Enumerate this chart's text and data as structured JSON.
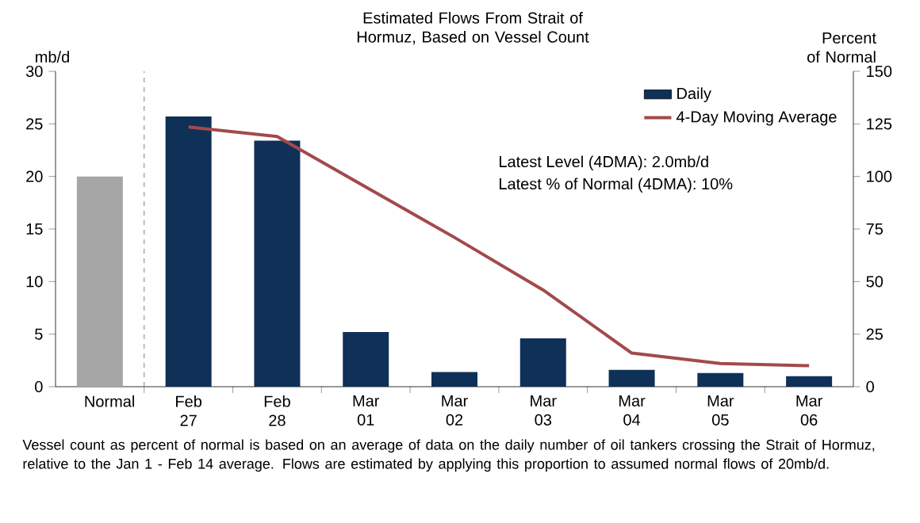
{
  "chart_data": {
    "type": "bar",
    "title": "Estimated Flows From Strait of Hormuz, Based on Vessel Count",
    "ylabel": "mb/d",
    "y2label": "Percent of Normal",
    "categories": [
      "Normal",
      "Feb 27",
      "Feb 28",
      "Mar 01",
      "Mar 02",
      "Mar 03",
      "Mar 04",
      "Mar 05",
      "Mar 06"
    ],
    "series": [
      {
        "name": "Daily",
        "color": "#0f3057",
        "colors": [
          "#a6a6a6",
          "#0f3057",
          "#0f3057",
          "#0f3057",
          "#0f3057",
          "#0f3057",
          "#0f3057",
          "#0f3057",
          "#0f3057"
        ],
        "values": [
          20,
          25.7,
          23.4,
          5.2,
          1.4,
          4.6,
          1.6,
          1.3,
          1.0
        ]
      },
      {
        "name": "4-Day Moving Average",
        "type": "line",
        "axis": "y2",
        "color": "#a34a4a",
        "values": [
          null,
          123.5,
          119,
          95,
          71,
          46,
          16,
          11,
          10
        ]
      }
    ],
    "ylim": [
      0,
      30
    ],
    "yticks": [
      0,
      5,
      10,
      15,
      20,
      25,
      30
    ],
    "y2lim": [
      0,
      150
    ],
    "y2ticks": [
      0,
      25,
      50,
      75,
      100,
      125,
      150
    ],
    "legend": "top right",
    "annotations": [
      "Latest Level (4DMA): 2.0mb/d",
      "Latest % of Normal (4DMA): 10%",
      "Vessel count as percent of normal is based on an average of data on the daily number of oil tankers crossing the Strait of Hormuz, relative to the Jan 1 - Feb 14 average. Flows are estimated by applying this proportion to assumed normal flows of 20mb/d."
    ]
  }
}
